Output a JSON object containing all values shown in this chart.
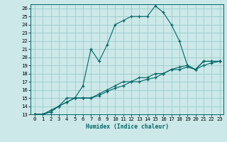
{
  "title": "",
  "xlabel": "Humidex (Indice chaleur)",
  "bg_color": "#cce8e8",
  "grid_color": "#99cccc",
  "line_color": "#006666",
  "xlim": [
    -0.5,
    23.5
  ],
  "ylim": [
    13,
    26.5
  ],
  "xticks": [
    0,
    1,
    2,
    3,
    4,
    5,
    6,
    7,
    8,
    9,
    10,
    11,
    12,
    13,
    14,
    15,
    16,
    17,
    18,
    19,
    20,
    21,
    22,
    23
  ],
  "yticks": [
    13,
    14,
    15,
    16,
    17,
    18,
    19,
    20,
    21,
    22,
    23,
    24,
    25,
    26
  ],
  "line1_x": [
    0,
    1,
    2,
    3,
    4,
    5,
    6,
    7,
    8,
    9,
    10,
    11,
    12,
    13,
    14,
    15,
    16,
    17,
    18,
    19,
    20,
    21,
    22,
    23
  ],
  "line1_y": [
    13,
    13,
    13.5,
    14,
    15,
    15,
    16.5,
    21.0,
    19.5,
    21.5,
    24,
    24.5,
    25,
    25,
    25,
    26.3,
    25.5,
    24,
    22,
    19,
    18.5,
    19.5,
    19.5,
    19.5
  ],
  "line2_x": [
    0,
    1,
    2,
    3,
    4,
    5,
    6,
    7,
    8,
    9,
    10,
    11,
    12,
    13,
    14,
    15,
    16,
    17,
    18,
    19,
    20,
    21,
    22,
    23
  ],
  "line2_y": [
    13,
    13,
    13.3,
    14,
    14.5,
    15,
    15,
    15,
    15.5,
    16,
    16.5,
    17,
    17,
    17.5,
    17.5,
    18,
    18,
    18.5,
    18.8,
    19,
    18.5,
    19.5,
    19.5,
    19.5
  ],
  "line3_x": [
    0,
    1,
    2,
    3,
    4,
    5,
    6,
    7,
    8,
    9,
    10,
    11,
    12,
    13,
    14,
    15,
    16,
    17,
    18,
    19,
    20,
    21,
    22,
    23
  ],
  "line3_y": [
    13,
    13,
    13.3,
    14,
    14.5,
    15,
    15,
    15,
    15.3,
    15.8,
    16.2,
    16.5,
    17,
    17,
    17.3,
    17.5,
    18,
    18.5,
    18.5,
    18.8,
    18.5,
    19,
    19.3,
    19.5
  ]
}
